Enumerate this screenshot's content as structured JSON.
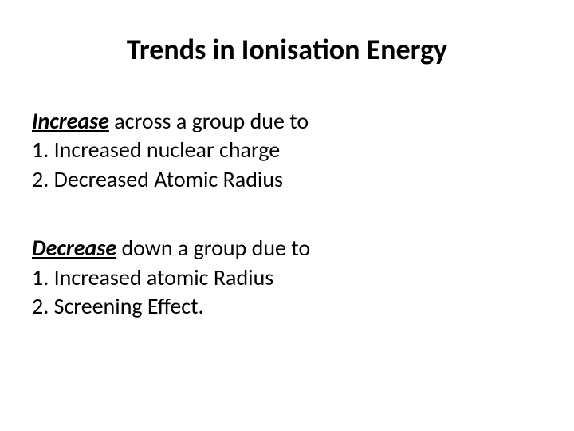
{
  "title": "Trends in Ionisation Energy",
  "section1": {
    "emphasis": "Increase",
    "lead_rest": " across a group due to",
    "item1": "1.  Increased nuclear charge",
    "item2": "2.  Decreased Atomic Radius"
  },
  "section2": {
    "emphasis": "Decrease",
    "lead_rest": " down a group due to",
    "item1": "1. Increased atomic Radius",
    "item2": "2. Screening Effect."
  },
  "colors": {
    "background": "#ffffff",
    "text": "#000000"
  },
  "typography": {
    "title_fontsize": 36,
    "body_fontsize": 28,
    "font_family": "Calibri"
  }
}
